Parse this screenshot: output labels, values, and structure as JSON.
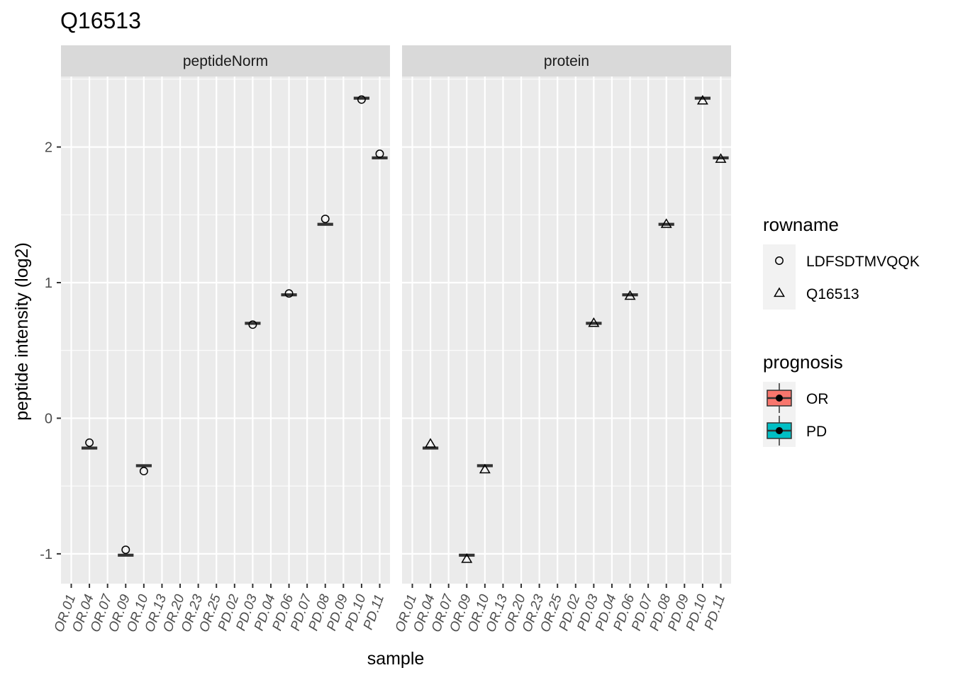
{
  "chart_data": {
    "type": "boxplot",
    "title": "Q16513",
    "xlabel": "sample",
    "ylabel": "peptide intensity (log2)",
    "ylim": [
      -1.22,
      2.52
    ],
    "yticks": [
      -1,
      0,
      1,
      2
    ],
    "categories": [
      "OR.01",
      "OR.04",
      "OR.07",
      "OR.09",
      "OR.10",
      "OR.13",
      "OR.20",
      "OR.23",
      "OR.25",
      "PD.02",
      "PD.03",
      "PD.04",
      "PD.06",
      "PD.07",
      "PD.08",
      "PD.09",
      "PD.10",
      "PD.11"
    ],
    "facets": [
      {
        "label": "peptideNorm",
        "boxes": [
          {
            "sample": "OR.04",
            "value": -0.22,
            "prognosis": "OR"
          },
          {
            "sample": "OR.09",
            "value": -1.01,
            "prognosis": "OR"
          },
          {
            "sample": "OR.10",
            "value": -0.35,
            "prognosis": "OR"
          },
          {
            "sample": "PD.03",
            "value": 0.7,
            "prognosis": "PD"
          },
          {
            "sample": "PD.06",
            "value": 0.91,
            "prognosis": "PD"
          },
          {
            "sample": "PD.08",
            "value": 1.43,
            "prognosis": "PD"
          },
          {
            "sample": "PD.10",
            "value": 2.36,
            "prognosis": "PD"
          },
          {
            "sample": "PD.11",
            "value": 1.92,
            "prognosis": "PD"
          }
        ],
        "points": [
          {
            "sample": "OR.04",
            "value": -0.18,
            "rowname": "LDFSDTMVQQK"
          },
          {
            "sample": "OR.09",
            "value": -0.97,
            "rowname": "LDFSDTMVQQK"
          },
          {
            "sample": "OR.10",
            "value": -0.39,
            "rowname": "LDFSDTMVQQK"
          },
          {
            "sample": "PD.03",
            "value": 0.69,
            "rowname": "LDFSDTMVQQK"
          },
          {
            "sample": "PD.06",
            "value": 0.92,
            "rowname": "LDFSDTMVQQK"
          },
          {
            "sample": "PD.08",
            "value": 1.47,
            "rowname": "LDFSDTMVQQK"
          },
          {
            "sample": "PD.10",
            "value": 2.35,
            "rowname": "LDFSDTMVQQK"
          },
          {
            "sample": "PD.11",
            "value": 1.95,
            "rowname": "LDFSDTMVQQK"
          }
        ]
      },
      {
        "label": "protein",
        "boxes": [
          {
            "sample": "OR.04",
            "value": -0.22,
            "prognosis": "OR"
          },
          {
            "sample": "OR.09",
            "value": -1.01,
            "prognosis": "OR"
          },
          {
            "sample": "OR.10",
            "value": -0.35,
            "prognosis": "OR"
          },
          {
            "sample": "PD.03",
            "value": 0.7,
            "prognosis": "PD"
          },
          {
            "sample": "PD.06",
            "value": 0.91,
            "prognosis": "PD"
          },
          {
            "sample": "PD.08",
            "value": 1.43,
            "prognosis": "PD"
          },
          {
            "sample": "PD.10",
            "value": 2.36,
            "prognosis": "PD"
          },
          {
            "sample": "PD.11",
            "value": 1.92,
            "prognosis": "PD"
          }
        ],
        "points": [
          {
            "sample": "OR.04",
            "value": -0.19,
            "rowname": "Q16513"
          },
          {
            "sample": "OR.09",
            "value": -1.04,
            "rowname": "Q16513"
          },
          {
            "sample": "OR.10",
            "value": -0.38,
            "rowname": "Q16513"
          },
          {
            "sample": "PD.03",
            "value": 0.7,
            "rowname": "Q16513"
          },
          {
            "sample": "PD.06",
            "value": 0.9,
            "rowname": "Q16513"
          },
          {
            "sample": "PD.08",
            "value": 1.43,
            "rowname": "Q16513"
          },
          {
            "sample": "PD.10",
            "value": 2.34,
            "rowname": "Q16513"
          },
          {
            "sample": "PD.11",
            "value": 1.91,
            "rowname": "Q16513"
          }
        ]
      }
    ],
    "legends": [
      {
        "title": "rowname",
        "entries": [
          {
            "label": "LDFSDTMVQQK",
            "shape": "circle"
          },
          {
            "label": "Q16513",
            "shape": "triangle"
          }
        ]
      },
      {
        "title": "prognosis",
        "entries": [
          {
            "label": "OR",
            "color": "#F8766D"
          },
          {
            "label": "PD",
            "color": "#00BFC4"
          }
        ]
      }
    ],
    "legend_position": "right",
    "grid": true,
    "colors": {
      "panel": "#ebebeb",
      "grid_major": "#ffffff",
      "strip": "#d9d9d9",
      "legend_key": "#f2f2f2",
      "box_line": "#333333"
    }
  }
}
